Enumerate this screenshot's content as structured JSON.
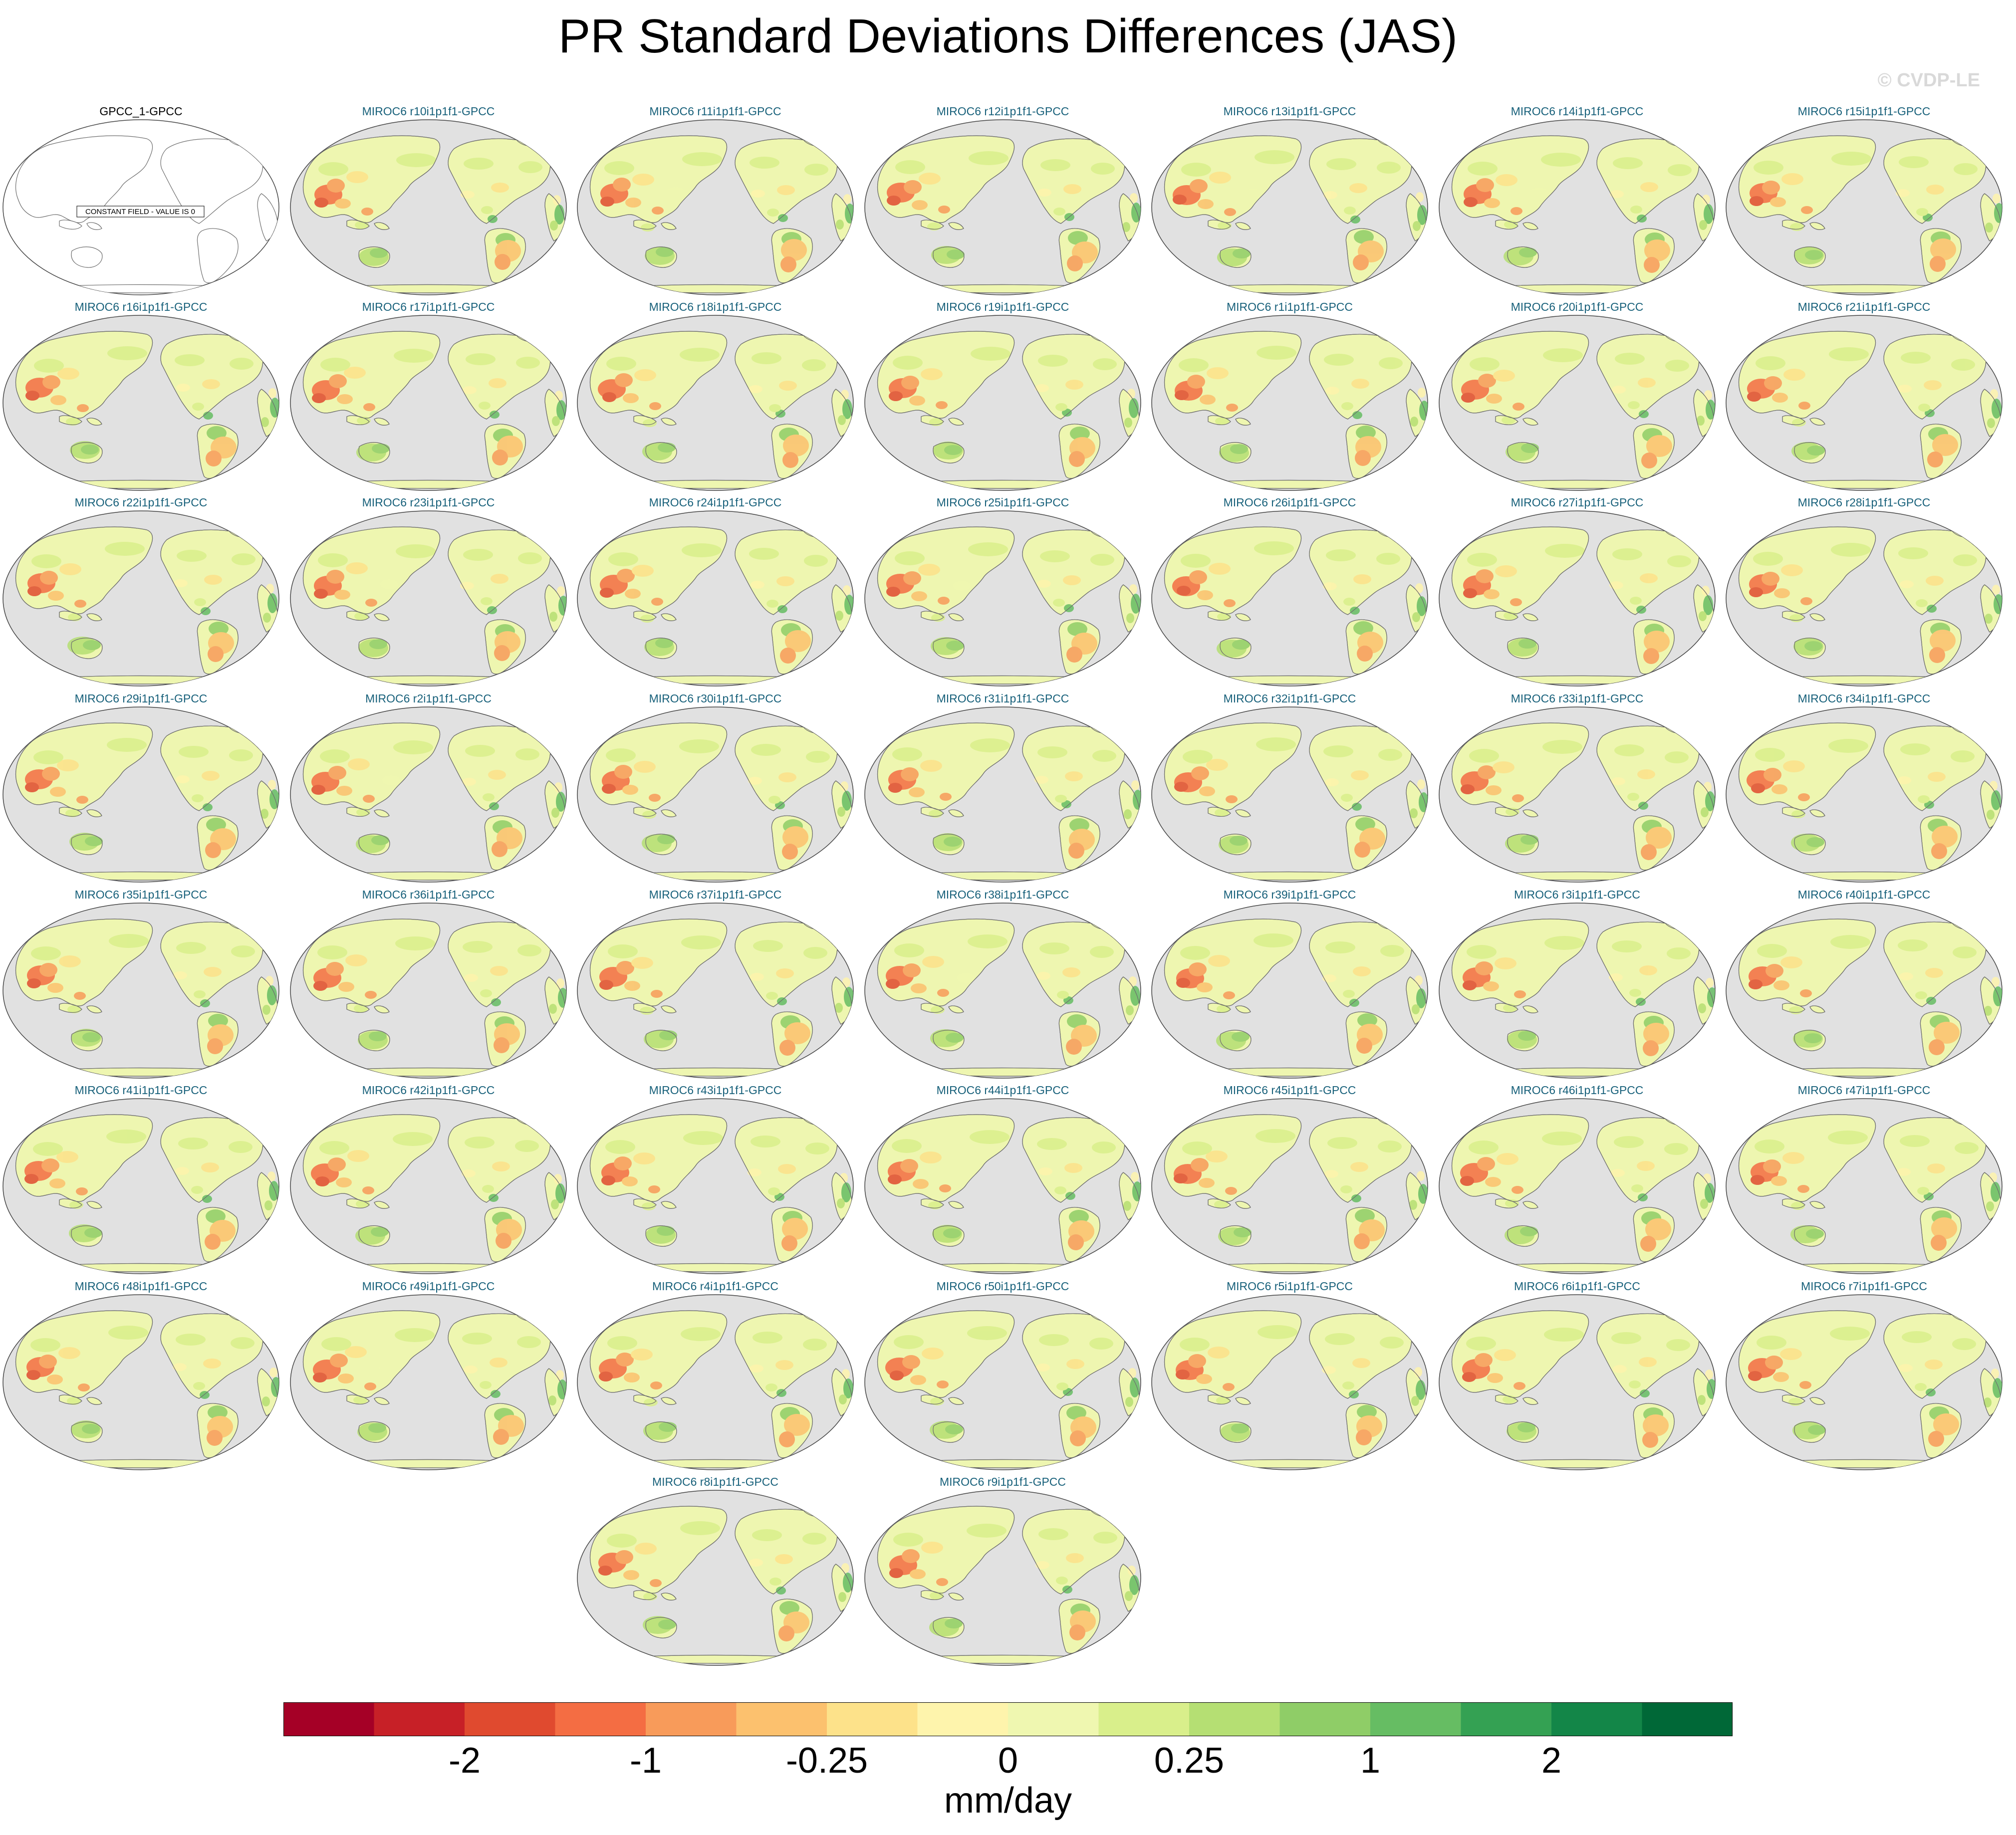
{
  "title": "PR Standard Deviations Differences (JAS)",
  "watermark": "© CVDP-LE",
  "observation_panel": {
    "label": "GPCC_1-GPCC",
    "note": "CONSTANT FIELD - VALUE IS 0"
  },
  "member_panels": [
    "MIROC6 r10i1p1f1-GPCC",
    "MIROC6 r11i1p1f1-GPCC",
    "MIROC6 r12i1p1f1-GPCC",
    "MIROC6 r13i1p1f1-GPCC",
    "MIROC6 r14i1p1f1-GPCC",
    "MIROC6 r15i1p1f1-GPCC",
    "MIROC6 r16i1p1f1-GPCC",
    "MIROC6 r17i1p1f1-GPCC",
    "MIROC6 r18i1p1f1-GPCC",
    "MIROC6 r19i1p1f1-GPCC",
    "MIROC6 r1i1p1f1-GPCC",
    "MIROC6 r20i1p1f1-GPCC",
    "MIROC6 r21i1p1f1-GPCC",
    "MIROC6 r22i1p1f1-GPCC",
    "MIROC6 r23i1p1f1-GPCC",
    "MIROC6 r24i1p1f1-GPCC",
    "MIROC6 r25i1p1f1-GPCC",
    "MIROC6 r26i1p1f1-GPCC",
    "MIROC6 r27i1p1f1-GPCC",
    "MIROC6 r28i1p1f1-GPCC",
    "MIROC6 r29i1p1f1-GPCC",
    "MIROC6 r2i1p1f1-GPCC",
    "MIROC6 r30i1p1f1-GPCC",
    "MIROC6 r31i1p1f1-GPCC",
    "MIROC6 r32i1p1f1-GPCC",
    "MIROC6 r33i1p1f1-GPCC",
    "MIROC6 r34i1p1f1-GPCC",
    "MIROC6 r35i1p1f1-GPCC",
    "MIROC6 r36i1p1f1-GPCC",
    "MIROC6 r37i1p1f1-GPCC",
    "MIROC6 r38i1p1f1-GPCC",
    "MIROC6 r39i1p1f1-GPCC",
    "MIROC6 r3i1p1f1-GPCC",
    "MIROC6 r40i1p1f1-GPCC",
    "MIROC6 r41i1p1f1-GPCC",
    "MIROC6 r42i1p1f1-GPCC",
    "MIROC6 r43i1p1f1-GPCC",
    "MIROC6 r44i1p1f1-GPCC",
    "MIROC6 r45i1p1f1-GPCC",
    "MIROC6 r46i1p1f1-GPCC",
    "MIROC6 r47i1p1f1-GPCC",
    "MIROC6 r48i1p1f1-GPCC",
    "MIROC6 r49i1p1f1-GPCC",
    "MIROC6 r4i1p1f1-GPCC",
    "MIROC6 r50i1p1f1-GPCC",
    "MIROC6 r5i1p1f1-GPCC",
    "MIROC6 r6i1p1f1-GPCC",
    "MIROC6 r7i1p1f1-GPCC",
    "MIROC6 r8i1p1f1-GPCC",
    "MIROC6 r9i1p1f1-GPCC"
  ],
  "colorbar": {
    "colors": [
      "#a50026",
      "#c72027",
      "#e04a2f",
      "#f46d43",
      "#f89b5a",
      "#fcc16e",
      "#fde28a",
      "#fef4ac",
      "#eff7b0",
      "#d9ef8b",
      "#b5df73",
      "#8fcd67",
      "#66bd63",
      "#34a153",
      "#138648",
      "#006837"
    ],
    "tick_labels": [
      "-2",
      "-1",
      "-0.25",
      "0",
      "0.25",
      "1",
      "2"
    ],
    "units": "mm/day"
  },
  "map_colors": {
    "ocean": "#e1e1e1",
    "land_base": "#eef6b0",
    "coast": "#6e6e6e"
  }
}
